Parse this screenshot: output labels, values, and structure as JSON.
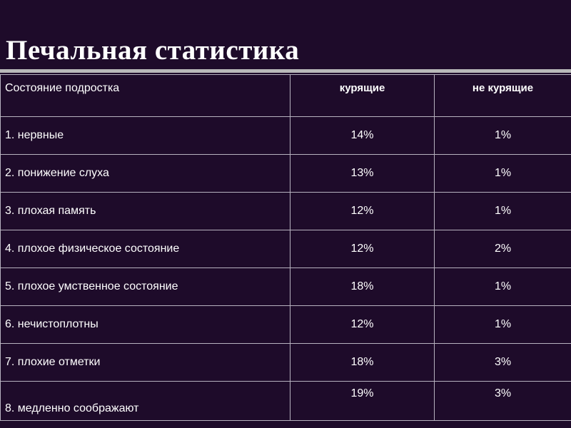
{
  "slide": {
    "title": "Печальная статистика"
  },
  "table": {
    "headers": [
      "Состояние подростка",
      "курящие",
      "не курящие"
    ],
    "rows": [
      [
        "1. нервные",
        "14%",
        "1%"
      ],
      [
        "2. понижение слуха",
        "13%",
        "1%"
      ],
      [
        "3. плохая память",
        "12%",
        "1%"
      ],
      [
        "4. плохое физическое состояние",
        "12%",
        "2%"
      ],
      [
        "5. плохое умственное состояние",
        "18%",
        "1%"
      ],
      [
        "6. нечистоплотны",
        "12%",
        "1%"
      ],
      [
        "7. плохие отметки",
        "18%",
        "3%"
      ],
      [
        "8. медленно соображают",
        "19%",
        "3%"
      ]
    ]
  },
  "colors": {
    "background": "#1e0b2a",
    "text": "#ffffff",
    "rule": "#b9b9b9",
    "table_border": "#b7b2bf"
  }
}
